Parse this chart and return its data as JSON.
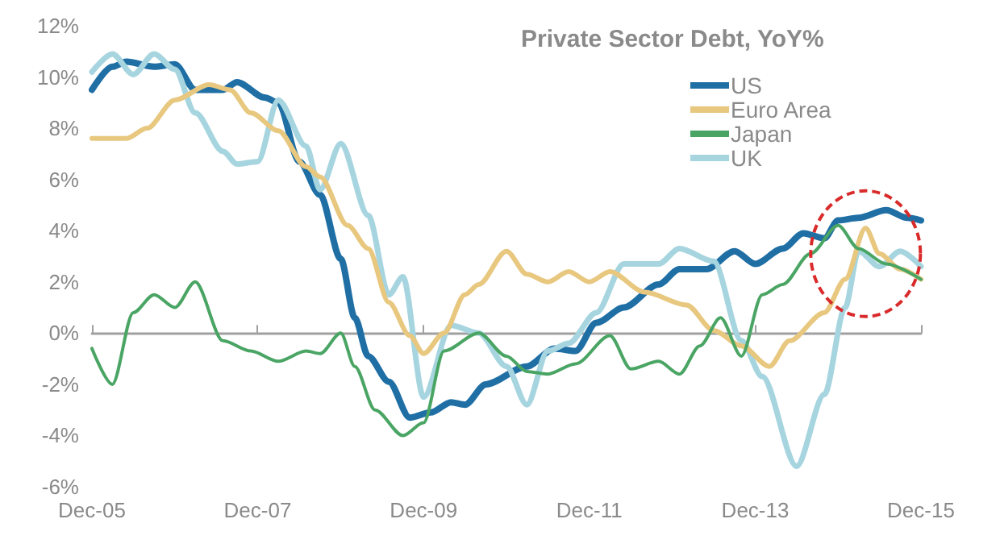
{
  "chart_data": {
    "type": "line",
    "title": "Private Sector Debt, YoY%",
    "legend": "top right",
    "marker": "none",
    "line_style": "solid",
    "xlim": [
      "2005-12",
      "2015-12"
    ],
    "xticks": [
      {
        "value": "2005-12",
        "label": "Dec-05"
      },
      {
        "value": "2007-12",
        "label": "Dec-07"
      },
      {
        "value": "2009-12",
        "label": "Dec-09"
      },
      {
        "value": "2011-12",
        "label": "Dec-11"
      },
      {
        "value": "2013-12",
        "label": "Dec-13"
      },
      {
        "value": "2015-12",
        "label": "Dec-15"
      }
    ],
    "ylim": [
      -6,
      12
    ],
    "yticks": [
      {
        "value": -6,
        "label": "-6%"
      },
      {
        "value": -4,
        "label": "-4%"
      },
      {
        "value": -2,
        "label": "-2%"
      },
      {
        "value": 0,
        "label": "0%"
      },
      {
        "value": 2,
        "label": "2%"
      },
      {
        "value": 4,
        "label": "4%"
      },
      {
        "value": 6,
        "label": "6%"
      },
      {
        "value": 8,
        "label": "8%"
      },
      {
        "value": 10,
        "label": "10%"
      },
      {
        "value": 12,
        "label": "12%"
      }
    ],
    "series": [
      {
        "name": "US",
        "color": "#1f6fa5",
        "x": [
          "2005-12",
          "2006-03",
          "2006-05",
          "2006-09",
          "2006-12",
          "2007-03",
          "2007-07",
          "2007-09",
          "2008-01",
          "2008-03",
          "2008-06",
          "2008-09",
          "2008-12",
          "2009-02",
          "2009-04",
          "2009-07",
          "2009-10",
          "2010-01",
          "2010-04",
          "2010-06",
          "2010-09",
          "2011-03",
          "2011-07",
          "2011-10",
          "2012-01",
          "2012-05",
          "2012-10",
          "2013-01",
          "2013-05",
          "2013-09",
          "2013-12",
          "2014-04",
          "2014-07",
          "2014-10",
          "2014-12",
          "2015-03",
          "2015-07",
          "2015-10",
          "2015-12"
        ],
        "values": [
          9.5,
          10.4,
          10.6,
          10.4,
          10.5,
          9.5,
          9.5,
          9.8,
          9.2,
          9.0,
          6.7,
          5.4,
          2.9,
          0.6,
          -0.9,
          -1.9,
          -3.3,
          -3.1,
          -2.7,
          -2.8,
          -2.0,
          -1.3,
          -0.6,
          -0.7,
          0.4,
          1.0,
          1.9,
          2.5,
          2.5,
          3.2,
          2.7,
          3.3,
          3.9,
          3.7,
          4.4,
          4.5,
          4.8,
          4.5,
          4.4
        ]
      },
      {
        "name": "Euro Area",
        "color": "#e8c77f",
        "x": [
          "2005-12",
          "2006-05",
          "2006-08",
          "2006-12",
          "2007-05",
          "2007-08",
          "2007-11",
          "2008-03",
          "2008-07",
          "2008-09",
          "2009-01",
          "2009-04",
          "2009-07",
          "2009-10",
          "2009-12",
          "2010-03",
          "2010-06",
          "2010-08",
          "2010-12",
          "2011-03",
          "2011-06",
          "2011-09",
          "2011-12",
          "2012-03",
          "2012-08",
          "2013-02",
          "2013-06",
          "2013-10",
          "2014-02",
          "2014-05",
          "2014-10",
          "2015-01",
          "2015-04",
          "2015-06",
          "2015-09",
          "2015-12"
        ],
        "values": [
          7.6,
          7.6,
          8.0,
          9.1,
          9.7,
          9.5,
          8.6,
          7.9,
          6.5,
          6.1,
          4.2,
          3.3,
          1.2,
          -0.1,
          -0.8,
          0.0,
          1.5,
          1.9,
          3.2,
          2.3,
          2.0,
          2.4,
          2.0,
          2.4,
          1.6,
          1.1,
          0.1,
          -0.5,
          -1.3,
          -0.3,
          0.8,
          2.1,
          4.1,
          3.1,
          2.5,
          2.1
        ]
      },
      {
        "name": "Japan",
        "color": "#4aa564",
        "x": [
          "2005-12",
          "2006-03",
          "2006-06",
          "2006-09",
          "2006-12",
          "2007-03",
          "2007-07",
          "2007-11",
          "2008-03",
          "2008-07",
          "2008-09",
          "2008-12",
          "2009-02",
          "2009-05",
          "2009-09",
          "2009-12",
          "2010-03",
          "2010-08",
          "2010-12",
          "2011-03",
          "2011-06",
          "2011-10",
          "2012-03",
          "2012-06",
          "2012-10",
          "2013-01",
          "2013-04",
          "2013-07",
          "2013-10",
          "2014-01",
          "2014-04",
          "2014-08",
          "2014-12",
          "2015-03",
          "2015-07",
          "2015-12"
        ],
        "values": [
          -0.6,
          -2.0,
          0.8,
          1.5,
          1.0,
          2.0,
          -0.3,
          -0.7,
          -1.1,
          -0.7,
          -0.8,
          0.0,
          -1.3,
          -3.0,
          -4.0,
          -3.5,
          -0.7,
          0.0,
          -0.9,
          -1.5,
          -1.6,
          -1.2,
          -0.1,
          -1.4,
          -1.1,
          -1.6,
          -0.5,
          0.6,
          -0.9,
          1.5,
          1.9,
          3.1,
          4.2,
          3.3,
          2.7,
          2.1
        ]
      },
      {
        "name": "UK",
        "color": "#a6d5e0",
        "x": [
          "2005-12",
          "2006-03",
          "2006-06",
          "2006-09",
          "2006-12",
          "2007-03",
          "2007-07",
          "2007-09",
          "2007-12",
          "2008-03",
          "2008-07",
          "2008-09",
          "2008-12",
          "2009-04",
          "2009-07",
          "2009-09",
          "2009-12",
          "2010-04",
          "2010-08",
          "2010-12",
          "2011-03",
          "2011-06",
          "2011-09",
          "2012-01",
          "2012-05",
          "2012-10",
          "2013-01",
          "2013-06",
          "2013-10",
          "2014-01",
          "2014-06",
          "2014-10",
          "2015-01",
          "2015-03",
          "2015-06",
          "2015-09",
          "2015-12"
        ],
        "values": [
          10.2,
          10.9,
          10.1,
          10.9,
          10.3,
          8.6,
          7.1,
          6.6,
          6.7,
          9.1,
          7.3,
          5.6,
          7.4,
          4.6,
          1.5,
          2.2,
          -2.5,
          0.3,
          0.0,
          -1.3,
          -2.8,
          -0.7,
          -0.4,
          0.8,
          2.7,
          2.7,
          3.3,
          2.8,
          -0.3,
          -1.7,
          -5.2,
          -2.4,
          1.0,
          3.2,
          2.6,
          3.2,
          2.6
        ]
      }
    ]
  }
}
